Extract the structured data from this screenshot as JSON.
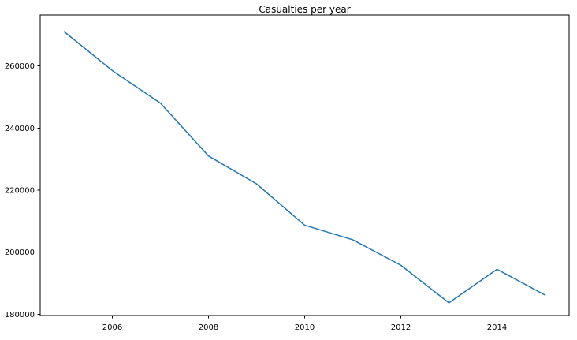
{
  "chart_data": {
    "type": "line",
    "title": "Casualties per year",
    "xlabel": "",
    "ylabel": "",
    "x": [
      2005,
      2006,
      2007,
      2008,
      2009,
      2010,
      2011,
      2012,
      2013,
      2014,
      2015
    ],
    "series": [
      {
        "values": [
          271000,
          258500,
          248000,
          231000,
          222000,
          208700,
          204000,
          195800,
          183700,
          194500,
          186200
        ],
        "color": "#1f77b4"
      }
    ],
    "xlim": [
      2004.5,
      2015.5
    ],
    "ylim": [
      179600,
      276400
    ],
    "x_ticks": [
      2006,
      2008,
      2010,
      2012,
      2014
    ],
    "y_ticks": [
      180000,
      200000,
      220000,
      240000,
      260000
    ],
    "x_tick_labels": [
      "2006",
      "2008",
      "2010",
      "2012",
      "2014"
    ],
    "y_tick_labels": [
      "180000",
      "200000",
      "220000",
      "240000",
      "260000"
    ],
    "grid": false,
    "legend": "none"
  }
}
